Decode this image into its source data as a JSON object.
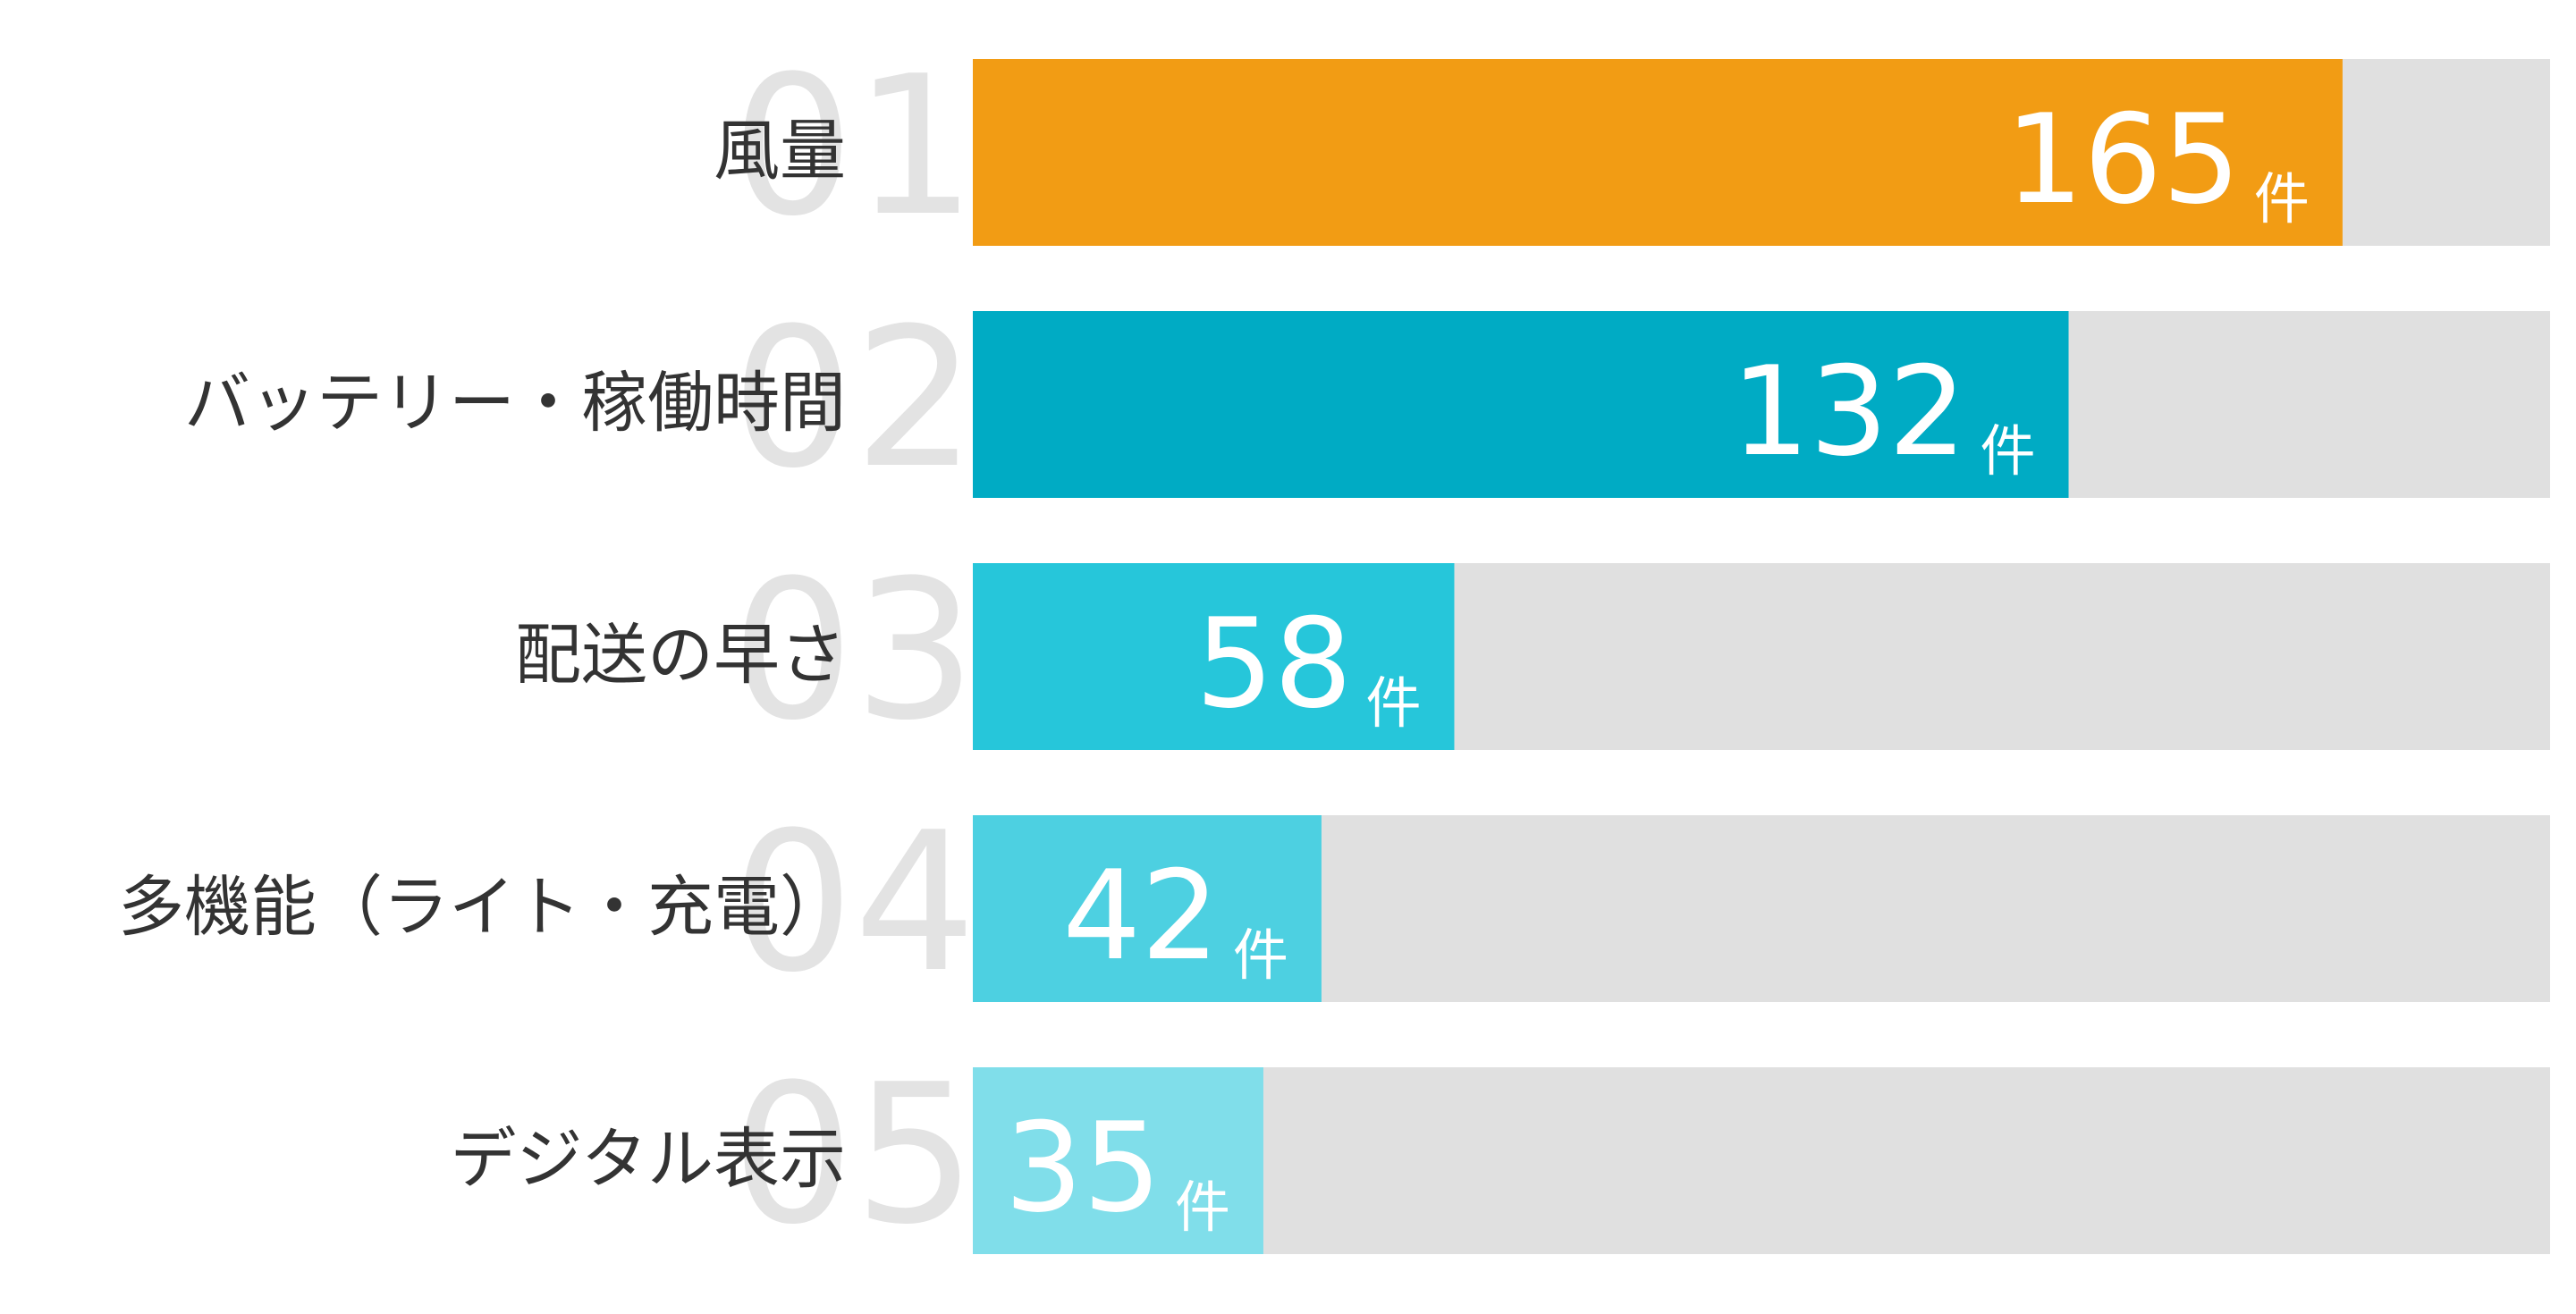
{
  "chart_data": {
    "type": "bar",
    "orientation": "horizontal",
    "categories": [
      "風量",
      "バッテリー・稼働時間",
      "配送の早さ",
      "多機能（ライト・充電）",
      "デジタル表示"
    ],
    "ranks": [
      "01",
      "02",
      "03",
      "04",
      "05"
    ],
    "values": [
      165,
      132,
      58,
      42,
      35
    ],
    "unit": "件",
    "colors": [
      "#f29c14",
      "#00abc4",
      "#26c6da",
      "#4dd0e1",
      "#80deea"
    ],
    "track_color": "#e0e0e0",
    "xlim": [
      0,
      190
    ]
  }
}
